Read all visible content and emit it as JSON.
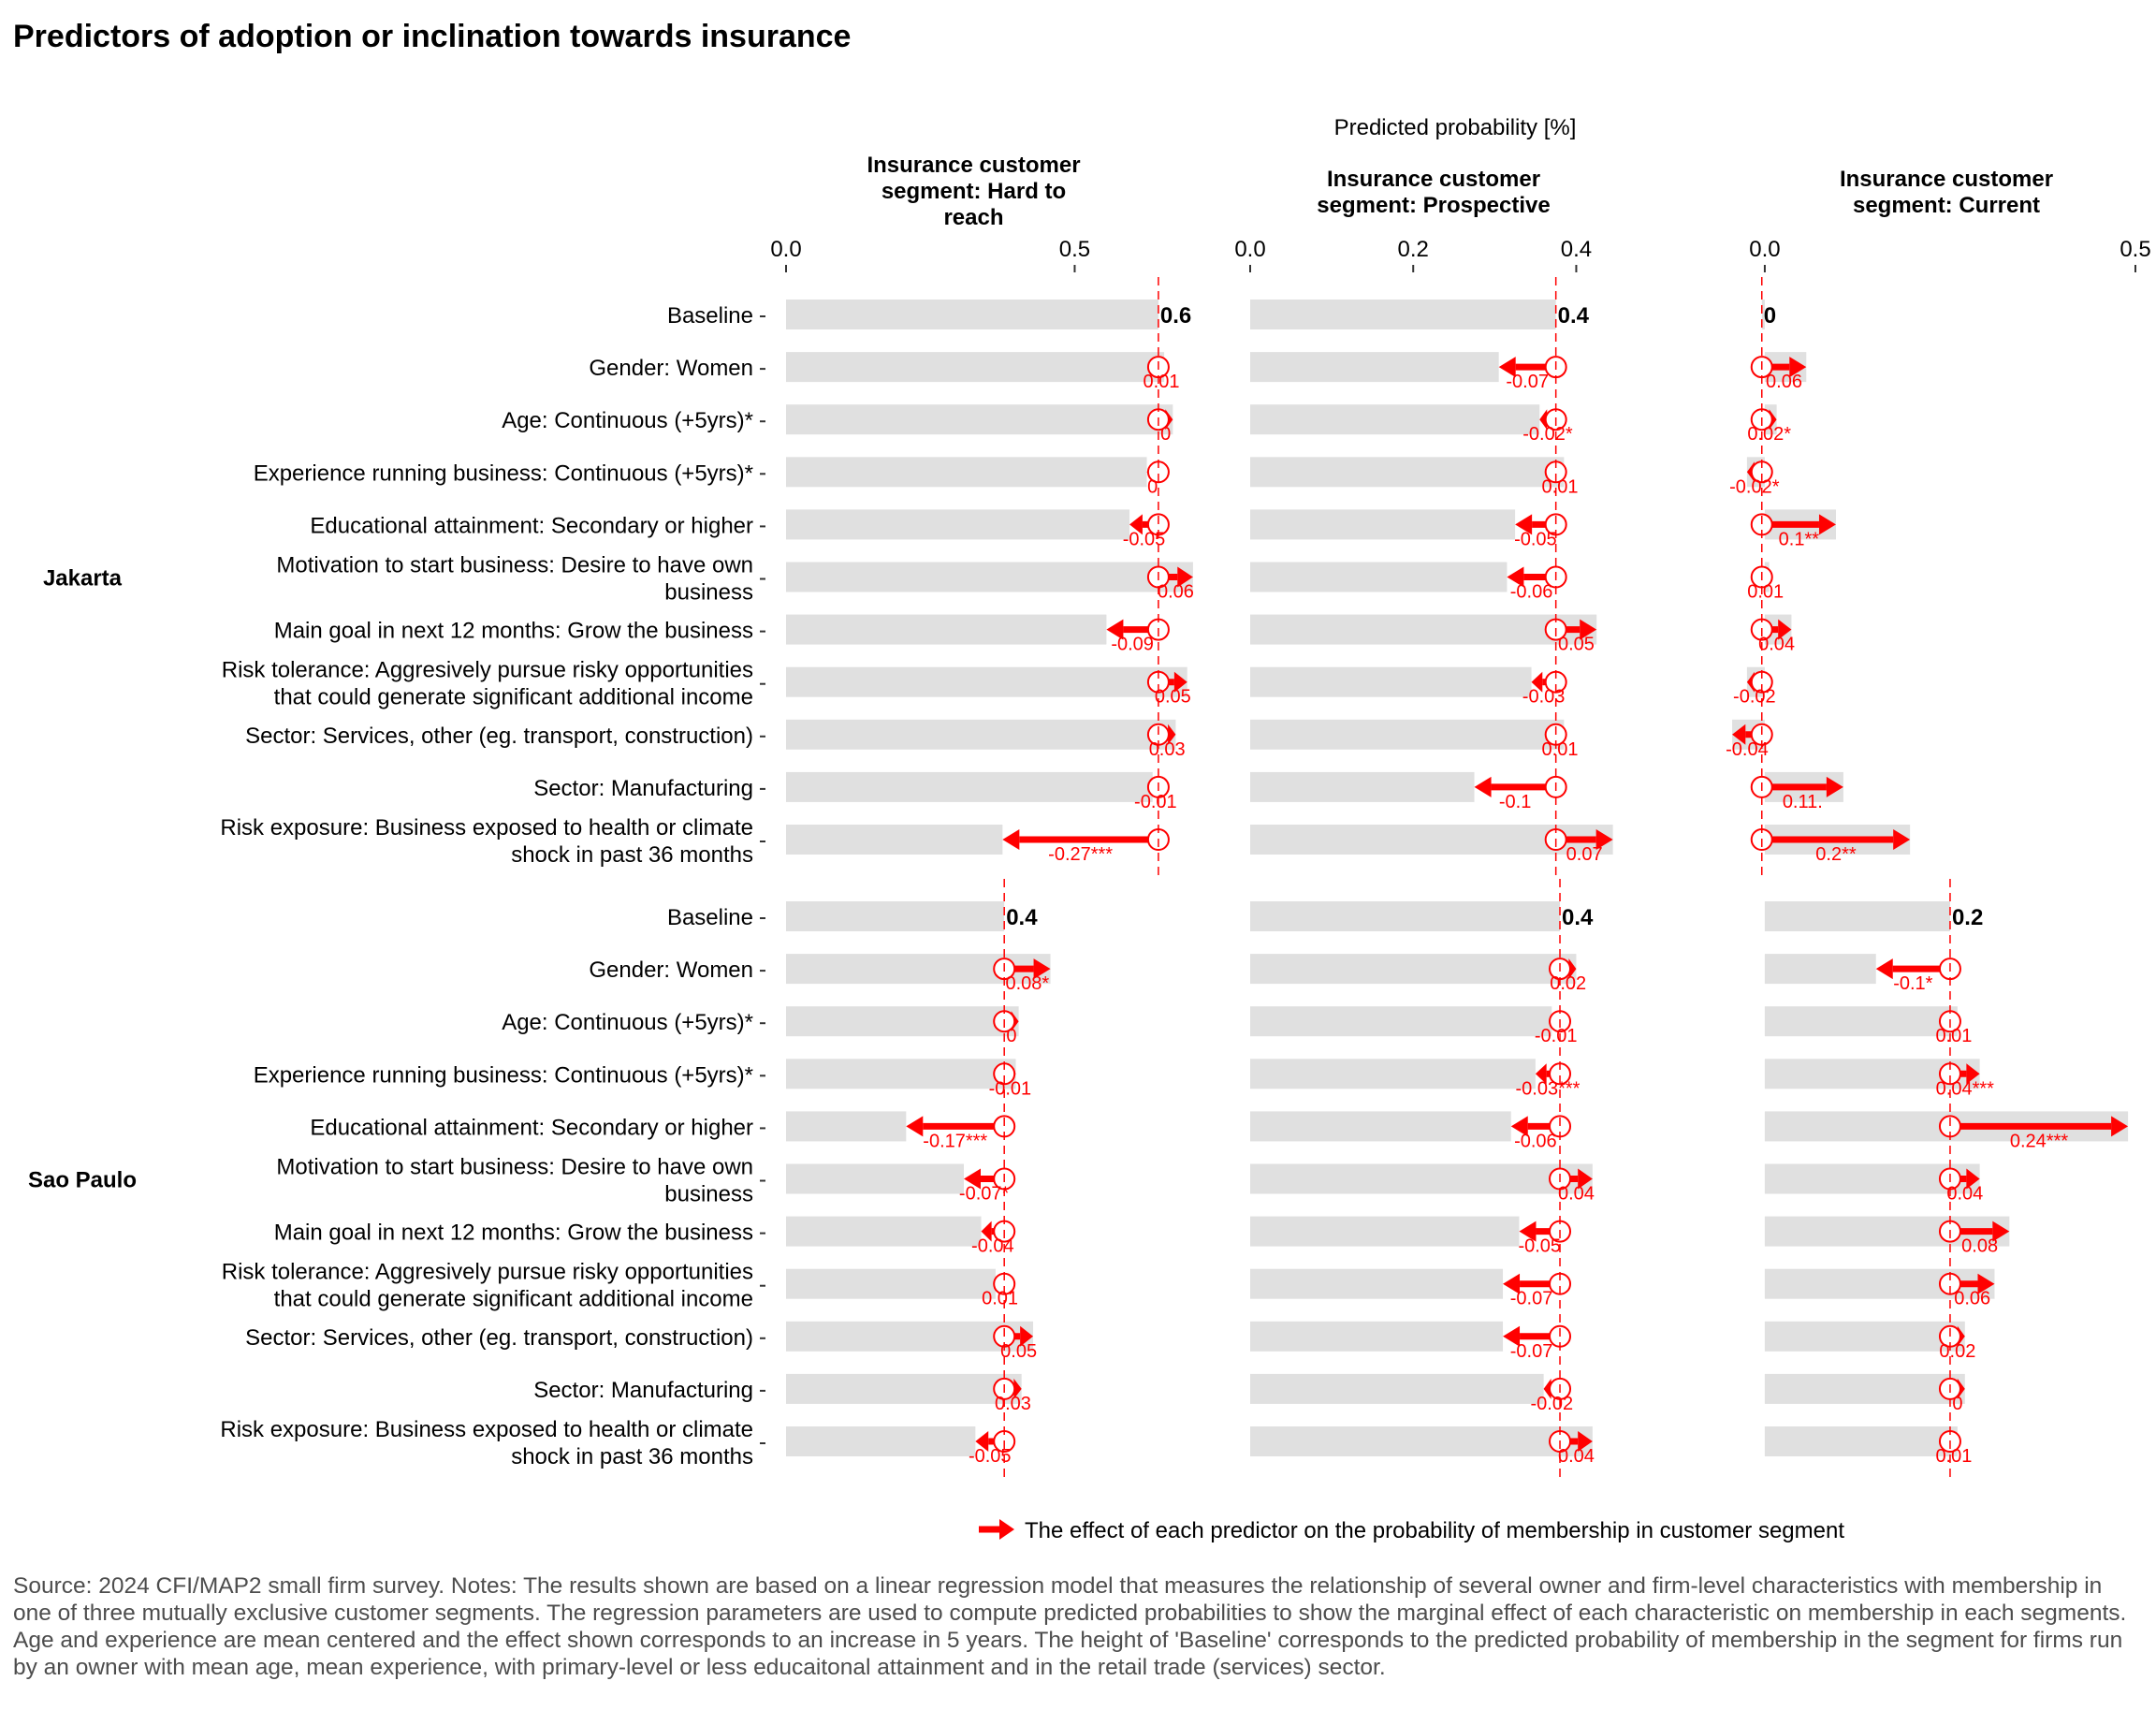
{
  "title": "Predictors of adoption or inclination towards insurance",
  "legend_label": "The effect of each predictor on the probability of membership in customer segment",
  "notes": "Source: 2024 CFI/MAP2 small firm survey. Notes: The results shown are based on a linear regression model that measures the relationship of several owner and firm-level characteristics with membership in one of three mutually exclusive customer segments. The regression parameters are used to compute predicted probabilities to show the marginal effect of each characteristic on membership in each segments. Age and experience are mean centered and the effect shown corresponds to an increase in 5 years. The height of 'Baseline' corresponds to the predicted probability of membership in the segment for firms run by an owner with mean age, mean experience, with primary-level or less educaitonal attainment and in the retail trade (services) sector.",
  "colors": {
    "bar": "#e0e0e0",
    "effect": "#ff0000",
    "baseline_line": "#ff0000"
  },
  "chart_data": {
    "type": "bar",
    "xlabel": "Predicted probability [%]",
    "groups": [
      "Jakarta",
      "Sao Paulo"
    ],
    "categories": [
      "Baseline",
      "Gender: Women",
      "Age: Continuous (+5yrs)*",
      "Experience running business: Continuous (+5yrs)*",
      "Educational attainment: Secondary or higher",
      "Motivation to start business: Desire to have own\nbusiness",
      "Main goal in next 12 months: Grow the business",
      "Risk tolerance: Aggresively pursue risky opportunities\nthat could generate significant additional income",
      "Sector: Services, other (eg. transport, construction)",
      "Sector: Manufacturing",
      "Risk exposure: Business exposed to health or climate\nshock in past 36 months"
    ],
    "panels": [
      {
        "title": "Insurance customer\nsegment: Hard to\nreach",
        "xlim": [
          0,
          0.65
        ],
        "ticks": [
          {
            "v": 0,
            "label": "0.0"
          },
          {
            "v": 0.5,
            "label": "0.5"
          }
        ],
        "data": {
          "Jakarta": {
            "baseline": 0.645,
            "baseline_label": "0.6",
            "effects": [
              0.01,
              0.025,
              -0.02,
              -0.05,
              0.06,
              -0.09,
              0.05,
              0.03,
              -0.01,
              -0.27
            ],
            "labels": [
              "0.01",
              "0",
              "0",
              "-0.05",
              "0.06",
              "-0.09",
              "0.05",
              "0.03",
              "-0.01",
              "-0.27***"
            ]
          },
          "Sao Paulo": {
            "baseline": 0.378,
            "baseline_label": "0.4",
            "effects": [
              0.08,
              0.025,
              0.02,
              -0.17,
              -0.07,
              -0.04,
              -0.015,
              0.05,
              0.03,
              -0.05
            ],
            "labels": [
              "0.08*",
              "0",
              "-0.01",
              "-0.17***",
              "-0.07*",
              "-0.04",
              "0.01",
              "0.05",
              "0.03",
              "-0.05"
            ]
          }
        }
      },
      {
        "title": "Insurance customer\nsegment: Prospective",
        "xlim": [
          0,
          0.45
        ],
        "ticks": [
          {
            "v": 0,
            "label": "0.0"
          },
          {
            "v": 0.2,
            "label": "0.2"
          },
          {
            "v": 0.4,
            "label": "0.4"
          }
        ],
        "data": {
          "Jakarta": {
            "baseline": 0.375,
            "baseline_label": "0.4",
            "effects": [
              -0.07,
              -0.02,
              0.01,
              -0.05,
              -0.06,
              0.05,
              -0.03,
              0.01,
              -0.1,
              0.07
            ],
            "labels": [
              "-0.07",
              "-0.02*",
              "0.01",
              "-0.05",
              "-0.06",
              "0.05",
              "-0.03",
              "0.01",
              "-0.1",
              "0.07"
            ]
          },
          "Sao Paulo": {
            "baseline": 0.38,
            "baseline_label": "0.4",
            "effects": [
              0.02,
              -0.01,
              -0.03,
              -0.06,
              0.04,
              -0.05,
              -0.07,
              -0.07,
              -0.02,
              0.04
            ],
            "labels": [
              "0.02",
              "-0.01",
              "-0.03***",
              "-0.06",
              "0.04",
              "-0.05",
              "-0.07",
              "-0.07",
              "-0.02",
              "0.04"
            ]
          }
        }
      },
      {
        "title": "Insurance customer\nsegment: Current",
        "xlim": [
          -0.01,
          0.5
        ],
        "ticks": [
          {
            "v": 0,
            "label": "0.0"
          },
          {
            "v": 0.5,
            "label": "0.5"
          }
        ],
        "data": {
          "Jakarta": {
            "baseline": -0.004,
            "baseline_label": "0",
            "effects": [
              0.06,
              0.02,
              -0.02,
              0.1,
              0.01,
              0.04,
              -0.02,
              -0.04,
              0.11,
              0.2
            ],
            "labels": [
              "0.06",
              "0.02*",
              "-0.02*",
              "0.1**",
              "0.01",
              "0.04",
              "-0.02",
              "-0.04",
              "0.11.",
              "0.2**"
            ]
          },
          "Sao Paulo": {
            "baseline": 0.25,
            "baseline_label": "0.2",
            "effects": [
              -0.1,
              0.01,
              0.04,
              0.24,
              0.04,
              0.08,
              0.06,
              0.02,
              0.02,
              0.01
            ],
            "labels": [
              "-0.1*",
              "0.01",
              "0.04***",
              "0.24***",
              "0.04",
              "0.08",
              "0.06",
              "0.02",
              "0",
              "0.01"
            ]
          }
        }
      }
    ]
  }
}
